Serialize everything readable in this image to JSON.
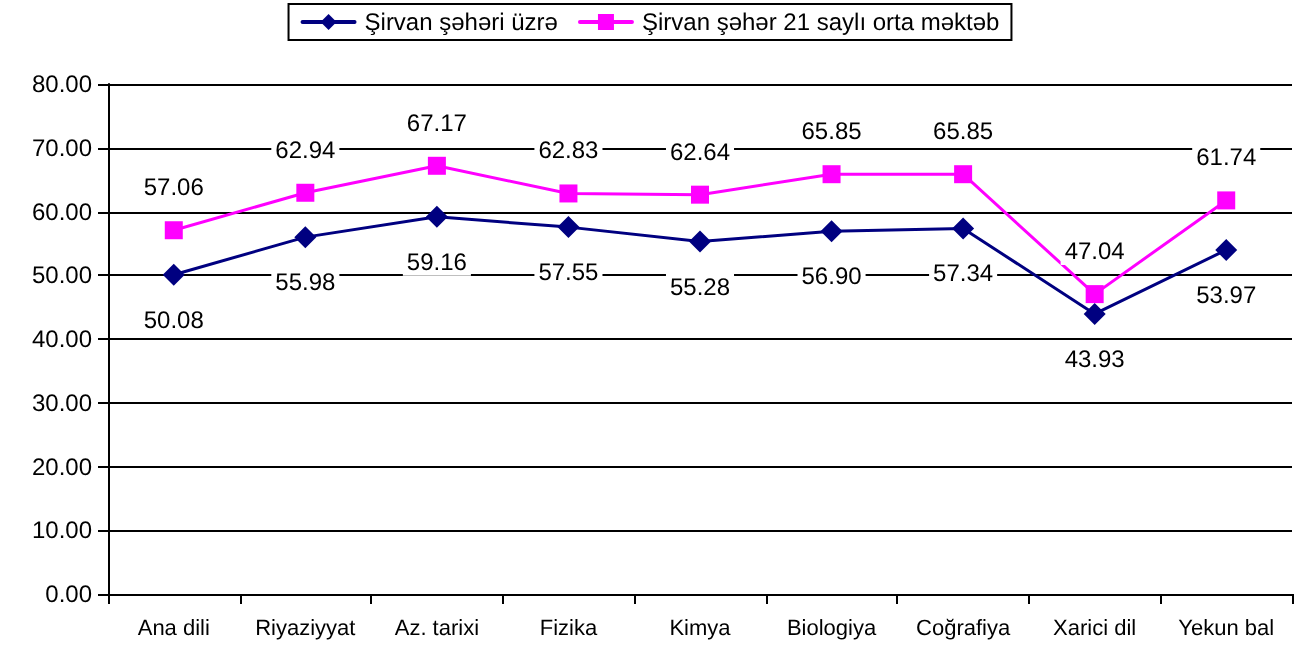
{
  "chart_data": {
    "type": "line",
    "categories": [
      "Ana dili",
      "Riyaziyyat",
      "Az. tarixi",
      "Fizika",
      "Kimya",
      "Biologiya",
      "Coğrafiya",
      "Xarici dil",
      "Yekun bal"
    ],
    "series": [
      {
        "name": "Şirvan şəhəri üzrə",
        "color": "#000080",
        "marker": "diamond",
        "values": [
          50.08,
          55.98,
          59.16,
          57.55,
          55.28,
          56.9,
          57.34,
          43.93,
          53.97
        ],
        "value_labels": [
          "50.08",
          "55.98",
          "59.16",
          "57.55",
          "55.28",
          "56.90",
          "57.34",
          "43.93",
          "53.97"
        ]
      },
      {
        "name": "Şirvan şəhər 21 saylı orta məktəb",
        "color": "#ff00ff",
        "marker": "square",
        "values": [
          57.06,
          62.94,
          67.17,
          62.83,
          62.64,
          65.85,
          65.85,
          47.04,
          61.74
        ],
        "value_labels": [
          "57.06",
          "62.94",
          "67.17",
          "62.83",
          "62.64",
          "65.85",
          "65.85",
          "47.04",
          "61.74"
        ]
      }
    ],
    "ylim": [
      0,
      80
    ],
    "yticks": [
      {
        "value": 0,
        "label": "0.00"
      },
      {
        "value": 10,
        "label": "10.00"
      },
      {
        "value": 20,
        "label": "20.00"
      },
      {
        "value": 30,
        "label": "30.00"
      },
      {
        "value": 40,
        "label": "40.00"
      },
      {
        "value": 50,
        "label": "50.00"
      },
      {
        "value": 60,
        "label": "60.00"
      },
      {
        "value": 70,
        "label": "70.00"
      },
      {
        "value": 80,
        "label": "80.00"
      }
    ],
    "grid": "y",
    "legend": "top",
    "line_style": "solid"
  }
}
